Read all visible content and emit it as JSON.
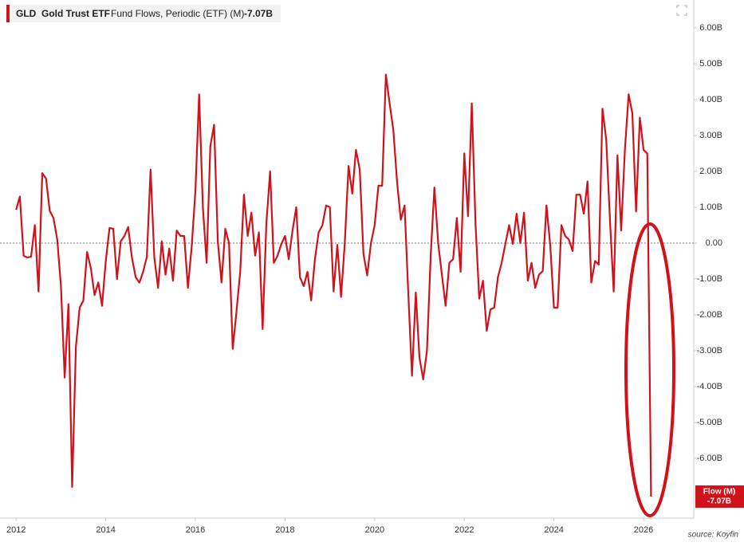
{
  "chart_data": {
    "type": "line",
    "header": {
      "ticker": "GLD",
      "name": "Gold Trust ETF",
      "metric": "Fund Flows, Periodic (ETF) (M)"
    },
    "last_value_label": "-7.07B",
    "source": "source: Koyfin",
    "x": [
      2012,
      2012.083,
      2012.167,
      2012.25,
      2012.333,
      2012.417,
      2012.5,
      2012.583,
      2012.667,
      2012.75,
      2012.833,
      2012.917,
      2013,
      2013.083,
      2013.167,
      2013.25,
      2013.333,
      2013.417,
      2013.5,
      2013.583,
      2013.667,
      2013.75,
      2013.833,
      2013.917,
      2014,
      2014.083,
      2014.167,
      2014.25,
      2014.333,
      2014.417,
      2014.5,
      2014.583,
      2014.667,
      2014.75,
      2014.833,
      2014.917,
      2015,
      2015.083,
      2015.167,
      2015.25,
      2015.333,
      2015.417,
      2015.5,
      2015.583,
      2015.667,
      2015.75,
      2015.833,
      2015.917,
      2016,
      2016.083,
      2016.167,
      2016.25,
      2016.333,
      2016.417,
      2016.5,
      2016.583,
      2016.667,
      2016.75,
      2016.833,
      2016.917,
      2017,
      2017.083,
      2017.167,
      2017.25,
      2017.333,
      2017.417,
      2017.5,
      2017.583,
      2017.667,
      2017.75,
      2017.833,
      2017.917,
      2018,
      2018.083,
      2018.167,
      2018.25,
      2018.333,
      2018.417,
      2018.5,
      2018.583,
      2018.667,
      2018.75,
      2018.833,
      2018.917,
      2019,
      2019.083,
      2019.167,
      2019.25,
      2019.333,
      2019.417,
      2019.5,
      2019.583,
      2019.667,
      2019.75,
      2019.833,
      2019.917,
      2020,
      2020.083,
      2020.167,
      2020.25,
      2020.333,
      2020.417,
      2020.5,
      2020.583,
      2020.667,
      2020.75,
      2020.833,
      2020.917,
      2021,
      2021.083,
      2021.167,
      2021.25,
      2021.333,
      2021.417,
      2021.5,
      2021.583,
      2021.667,
      2021.75,
      2021.833,
      2021.917,
      2022,
      2022.083,
      2022.167,
      2022.25,
      2022.333,
      2022.417,
      2022.5,
      2022.583,
      2022.667,
      2022.75,
      2022.833,
      2022.917,
      2023,
      2023.083,
      2023.167,
      2023.25,
      2023.333,
      2023.417,
      2023.5,
      2023.583,
      2023.667,
      2023.75,
      2023.833,
      2023.917,
      2024,
      2024.083,
      2024.167,
      2024.25,
      2024.333,
      2024.417,
      2024.5,
      2024.583,
      2024.667,
      2024.75,
      2024.833,
      2024.917,
      2025,
      2025.083,
      2025.167,
      2025.25,
      2025.333,
      2025.417,
      2025.5,
      2025.583,
      2025.667,
      2025.75,
      2025.833,
      2025.917,
      2026,
      2026.083,
      2026.167
    ],
    "series": [
      {
        "name": "Flow (M)",
        "color": "#d0121b",
        "values": [
          0.93,
          1.3,
          -0.35,
          -0.4,
          -0.38,
          0.5,
          -1.35,
          1.95,
          1.8,
          0.9,
          0.7,
          0.1,
          -1.2,
          -3.75,
          -1.7,
          -6.8,
          -2.9,
          -1.8,
          -1.6,
          -0.25,
          -0.7,
          -1.45,
          -1.1,
          -1.75,
          -0.5,
          0.42,
          0.4,
          -1.0,
          0.05,
          0.2,
          0.45,
          -0.4,
          -0.95,
          -1.1,
          -0.8,
          -0.38,
          2.05,
          -0.4,
          -1.25,
          0.05,
          -0.88,
          -0.15,
          -1.05,
          0.35,
          0.2,
          0.2,
          -1.25,
          -0.1,
          1.45,
          4.15,
          1.0,
          -0.55,
          2.7,
          3.3,
          0.05,
          -1.1,
          0.4,
          0.0,
          -2.95,
          -1.9,
          -0.8,
          1.35,
          0.2,
          0.85,
          -0.35,
          0.3,
          -2.4,
          0.55,
          2.0,
          -0.55,
          -0.35,
          -0.03,
          0.2,
          -0.45,
          0.35,
          1.0,
          -0.95,
          -1.2,
          -0.8,
          -1.6,
          -0.45,
          0.3,
          0.5,
          1.05,
          1.0,
          -1.35,
          -0.05,
          -1.5,
          0.0,
          2.15,
          1.38,
          2.6,
          2.05,
          -0.3,
          -0.9,
          0.0,
          0.5,
          1.6,
          1.6,
          4.7,
          3.9,
          3.15,
          1.7,
          0.65,
          1.05,
          -1.4,
          -3.7,
          -1.38,
          -3.2,
          -3.8,
          -3.0,
          -0.35,
          1.55,
          0.0,
          -0.88,
          -1.75,
          -0.55,
          -0.45,
          0.7,
          -0.8,
          2.5,
          0.75,
          3.9,
          0.55,
          -1.55,
          -1.05,
          -2.45,
          -1.85,
          -1.8,
          -0.95,
          -0.55,
          -0.02,
          0.5,
          -0.02,
          0.82,
          0.0,
          0.85,
          -1.05,
          -0.55,
          -1.25,
          -0.88,
          -0.78,
          1.05,
          -0.05,
          -1.8,
          -1.8,
          0.5,
          0.2,
          0.1,
          -0.22,
          1.35,
          1.35,
          0.82,
          1.72,
          -1.1,
          -0.5,
          -0.6,
          3.75,
          2.88,
          0.65,
          -1.35,
          2.45,
          0.35,
          2.6,
          4.15,
          3.62,
          0.88,
          3.5,
          2.6,
          2.5,
          -7.07
        ]
      }
    ],
    "xlim": [
      2011.64,
      2027.12
    ],
    "xticks": [
      2012,
      2014,
      2016,
      2018,
      2020,
      2022,
      2024,
      2026
    ],
    "ylim": [
      -7.67,
      6.78
    ],
    "yticks": [
      {
        "value": 6,
        "label": "6.00B"
      },
      {
        "value": 5,
        "label": "5.00B"
      },
      {
        "value": 4,
        "label": "4.00B"
      },
      {
        "value": 3,
        "label": "3.00B"
      },
      {
        "value": 2,
        "label": "2.00B"
      },
      {
        "value": 1,
        "label": "1.00B"
      },
      {
        "value": 0,
        "label": "0.00"
      },
      {
        "value": -1,
        "label": "-1.00B"
      },
      {
        "value": -2,
        "label": "-2.00B"
      },
      {
        "value": -3,
        "label": "-3.00B"
      },
      {
        "value": -4,
        "label": "-4.00B"
      },
      {
        "value": -5,
        "label": "-5.00B"
      },
      {
        "value": -6,
        "label": "-6.00B"
      }
    ],
    "zero_line": true
  }
}
